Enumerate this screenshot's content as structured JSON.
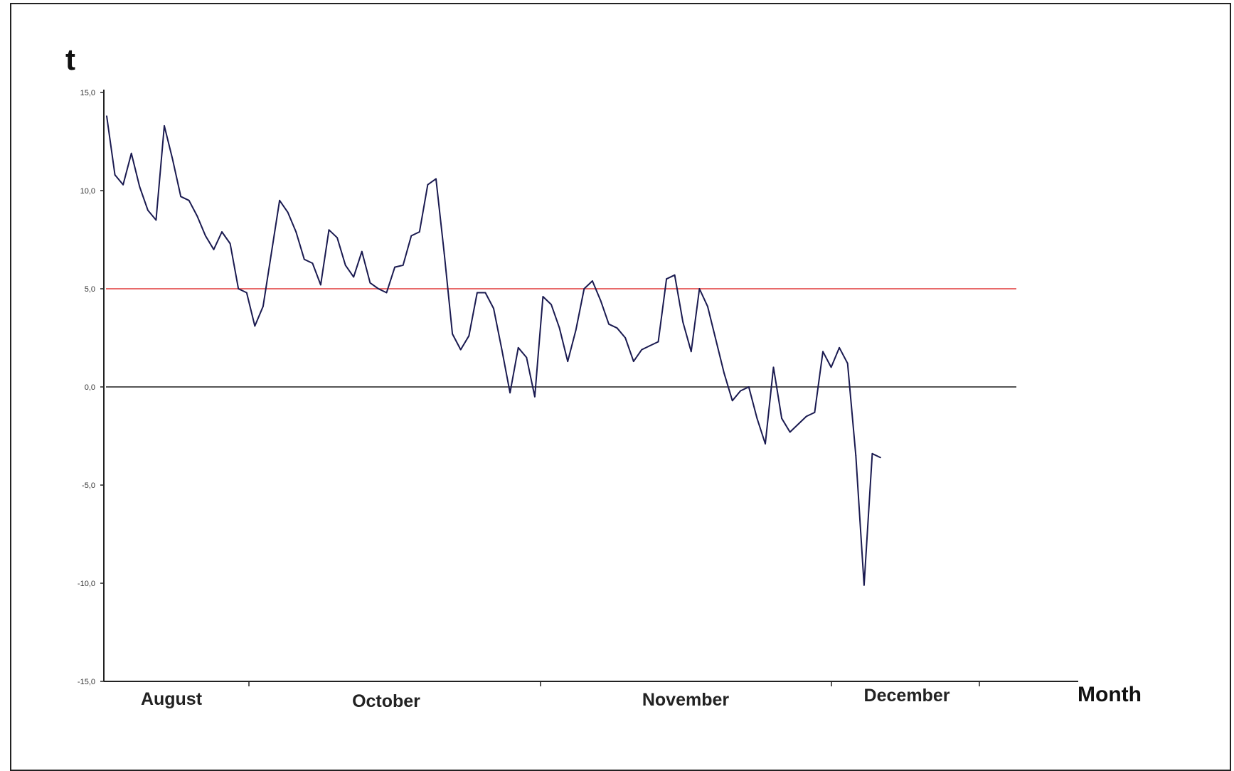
{
  "chart_data": {
    "type": "line",
    "ylabel": "t",
    "xlabel": "Month",
    "ylim": [
      -15,
      15
    ],
    "yticks": [
      {
        "value": 15,
        "label": "15,0"
      },
      {
        "value": 10,
        "label": "10,0"
      },
      {
        "value": 5,
        "label": "5,0"
      },
      {
        "value": 0,
        "label": "0,0"
      },
      {
        "value": -5,
        "label": "-5,0"
      },
      {
        "value": -10,
        "label": "-10,0"
      },
      {
        "value": -15,
        "label": "-15,0"
      }
    ],
    "months": [
      "August",
      "October",
      "November",
      "December"
    ],
    "reference_lines": [
      {
        "value": 5,
        "color": "#e86a6a"
      },
      {
        "value": 0,
        "color": "#555555"
      }
    ],
    "grid": false,
    "series": [
      {
        "color": "#1a1a50",
        "values": [
          13.8,
          10.8,
          10.3,
          11.9,
          10.2,
          9.0,
          8.5,
          13.3,
          11.6,
          9.7,
          9.5,
          8.7,
          7.7,
          7.0,
          7.9,
          7.3,
          5.0,
          4.8,
          3.1,
          4.1,
          6.8,
          9.5,
          8.9,
          7.9,
          6.5,
          6.3,
          5.2,
          8.0,
          7.6,
          6.2,
          5.6,
          6.9,
          5.3,
          5.0,
          4.8,
          6.1,
          6.2,
          7.7,
          7.9,
          10.3,
          10.6,
          6.8,
          2.7,
          1.9,
          2.6,
          4.8,
          4.8,
          4.0,
          1.9,
          -0.3,
          2.0,
          1.5,
          -0.5,
          4.6,
          4.2,
          3.0,
          1.3,
          2.9,
          5.0,
          5.4,
          4.4,
          3.2,
          3.0,
          2.5,
          1.3,
          1.9,
          2.1,
          2.3,
          5.5,
          5.7,
          3.3,
          1.8,
          5.0,
          4.1,
          2.4,
          0.7,
          -0.7,
          -0.2,
          0.0,
          -1.6,
          -2.9,
          1.0,
          -1.6,
          -2.3,
          -1.9,
          -1.5,
          -1.3,
          1.8,
          1.0,
          2.0,
          1.2,
          -3.5,
          -10.1,
          -3.4,
          -3.6
        ]
      }
    ]
  }
}
